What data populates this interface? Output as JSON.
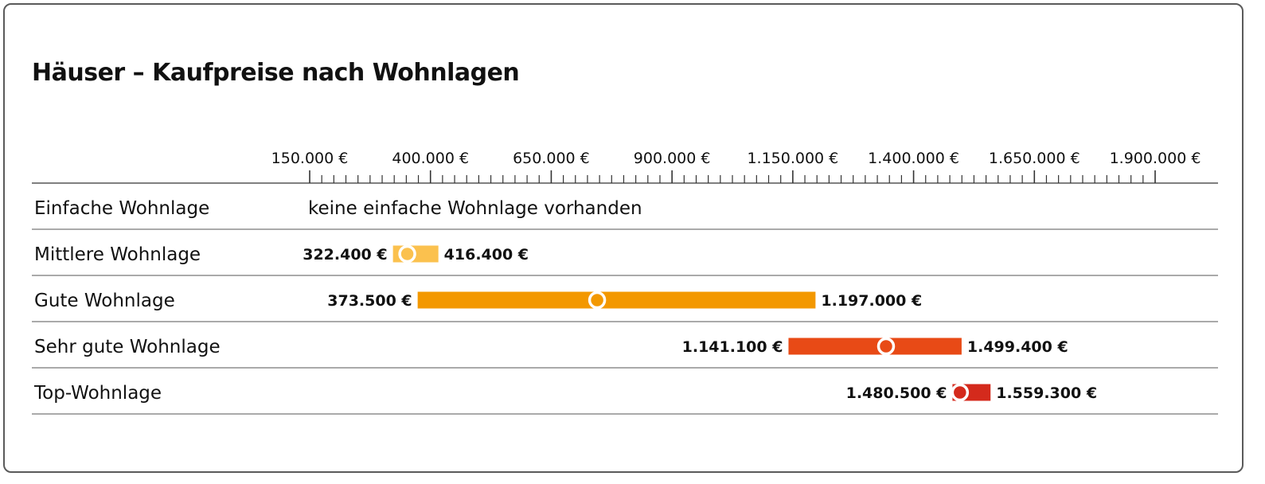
{
  "title": "Häuser – Kaufpreise nach Wohnlagen",
  "chart_data": {
    "type": "range-bar",
    "title": "Häuser – Kaufpreise nach Wohnlagen",
    "xlim": [
      150000,
      1900000
    ],
    "xticks": [
      150000,
      400000,
      650000,
      900000,
      1150000,
      1400000,
      1650000,
      1900000
    ],
    "xtick_labels": [
      "150.000 €",
      "400.000 €",
      "650.000 €",
      "900.000 €",
      "1.150.000 €",
      "1.400.000 €",
      "1.650.000 €",
      "1.900.000 €"
    ],
    "minor_tick_step": 25000,
    "rows": [
      {
        "label": "Einfache Wohnlage",
        "note": "keine einfache Wohnlage vorhanden",
        "min": null,
        "max": null,
        "median": null,
        "min_label": "",
        "max_label": "",
        "color": "#ffffff"
      },
      {
        "label": "Mittlere Wohnlage",
        "min": 322400,
        "max": 416400,
        "median": 352000,
        "min_label": "322.400 €",
        "max_label": "416.400 €",
        "color": "#fbc14e"
      },
      {
        "label": "Gute Wohnlage",
        "min": 373500,
        "max": 1197000,
        "median": 745000,
        "min_label": "373.500 €",
        "max_label": "1.197.000 €",
        "color": "#f39800"
      },
      {
        "label": "Sehr gute Wohnlage",
        "min": 1141100,
        "max": 1499400,
        "median": 1343000,
        "min_label": "1.141.100 €",
        "max_label": "1.499.400 €",
        "color": "#e84a16"
      },
      {
        "label": "Top-Wohnlage",
        "min": 1480500,
        "max": 1559300,
        "median": 1496000,
        "min_label": "1.480.500 €",
        "max_label": "1.559.300 €",
        "color": "#d42a1c"
      }
    ]
  }
}
